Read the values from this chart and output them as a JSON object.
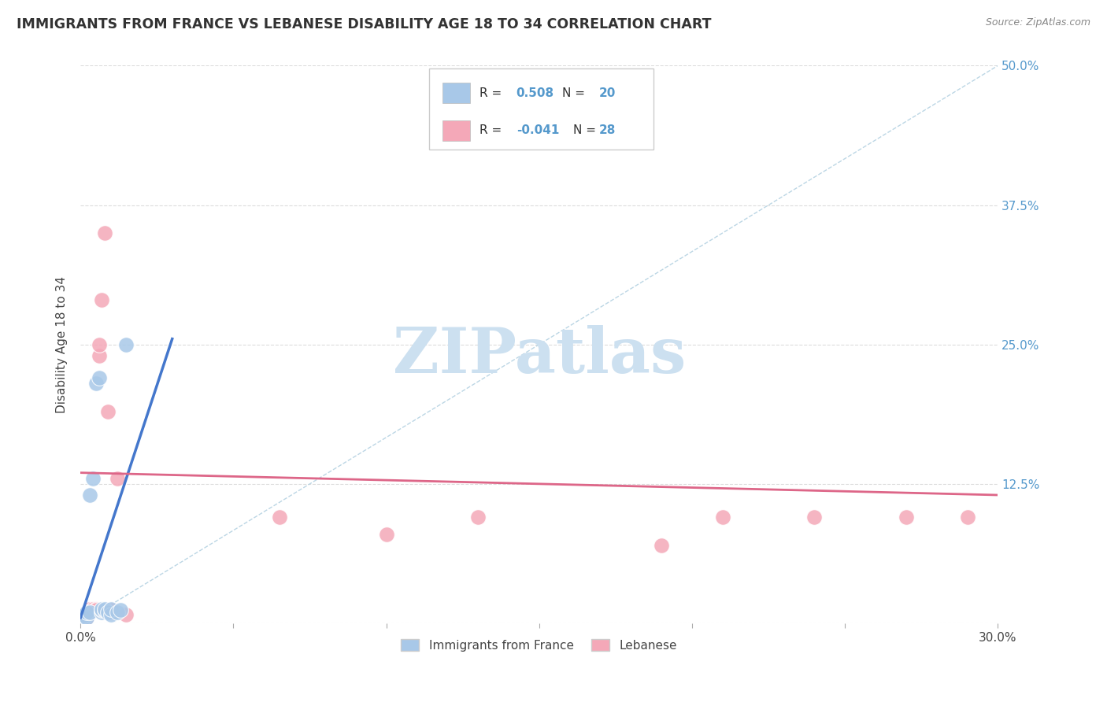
{
  "title": "IMMIGRANTS FROM FRANCE VS LEBANESE DISABILITY AGE 18 TO 34 CORRELATION CHART",
  "source": "Source: ZipAtlas.com",
  "ylabel": "Disability Age 18 to 34",
  "xlim": [
    0.0,
    0.3
  ],
  "ylim": [
    0.0,
    0.5
  ],
  "xticks": [
    0.0,
    0.05,
    0.1,
    0.15,
    0.2,
    0.25,
    0.3
  ],
  "xtick_labels": [
    "0.0%",
    "",
    "",
    "",
    "",
    "",
    "30.0%"
  ],
  "yticks": [
    0.0,
    0.125,
    0.25,
    0.375,
    0.5
  ],
  "ytick_labels": [
    "",
    "12.5%",
    "25.0%",
    "37.5%",
    "50.0%"
  ],
  "grid_color": "#dddddd",
  "background_color": "#ffffff",
  "diagonal_line_color": "#b0cfe0",
  "r_blue": 0.508,
  "n_blue": 20,
  "r_pink": -0.041,
  "n_pink": 28,
  "legend_labels": [
    "Immigrants from France",
    "Lebanese"
  ],
  "blue_color": "#a8c8e8",
  "pink_color": "#f4a8b8",
  "blue_line_color": "#4477cc",
  "pink_line_color": "#dd6688",
  "blue_scatter": [
    [
      0.001,
      0.005
    ],
    [
      0.001,
      0.007
    ],
    [
      0.002,
      0.005
    ],
    [
      0.002,
      0.01
    ],
    [
      0.003,
      0.01
    ],
    [
      0.003,
      0.115
    ],
    [
      0.004,
      0.13
    ],
    [
      0.005,
      0.215
    ],
    [
      0.006,
      0.22
    ],
    [
      0.007,
      0.01
    ],
    [
      0.007,
      0.012
    ],
    [
      0.007,
      0.013
    ],
    [
      0.008,
      0.012
    ],
    [
      0.008,
      0.013
    ],
    [
      0.009,
      0.01
    ],
    [
      0.01,
      0.008
    ],
    [
      0.01,
      0.013
    ],
    [
      0.012,
      0.01
    ],
    [
      0.013,
      0.012
    ],
    [
      0.015,
      0.25
    ]
  ],
  "pink_scatter": [
    [
      0.001,
      0.005
    ],
    [
      0.002,
      0.005
    ],
    [
      0.002,
      0.008
    ],
    [
      0.002,
      0.01
    ],
    [
      0.003,
      0.01
    ],
    [
      0.003,
      0.012
    ],
    [
      0.003,
      0.013
    ],
    [
      0.004,
      0.012
    ],
    [
      0.004,
      0.013
    ],
    [
      0.005,
      0.013
    ],
    [
      0.005,
      0.012
    ],
    [
      0.006,
      0.24
    ],
    [
      0.006,
      0.25
    ],
    [
      0.007,
      0.29
    ],
    [
      0.008,
      0.35
    ],
    [
      0.009,
      0.19
    ],
    [
      0.01,
      0.01
    ],
    [
      0.01,
      0.012
    ],
    [
      0.012,
      0.13
    ],
    [
      0.015,
      0.008
    ],
    [
      0.065,
      0.095
    ],
    [
      0.1,
      0.08
    ],
    [
      0.13,
      0.095
    ],
    [
      0.19,
      0.07
    ],
    [
      0.21,
      0.095
    ],
    [
      0.24,
      0.095
    ],
    [
      0.27,
      0.095
    ],
    [
      0.29,
      0.095
    ]
  ],
  "blue_line_x": [
    0.0,
    0.03
  ],
  "blue_line_y_start": 0.005,
  "blue_line_y_end": 0.255,
  "pink_line_x": [
    0.0,
    0.3
  ],
  "pink_line_y_start": 0.135,
  "pink_line_y_end": 0.115,
  "watermark": "ZIPatlas",
  "watermark_color": "#cce0f0"
}
